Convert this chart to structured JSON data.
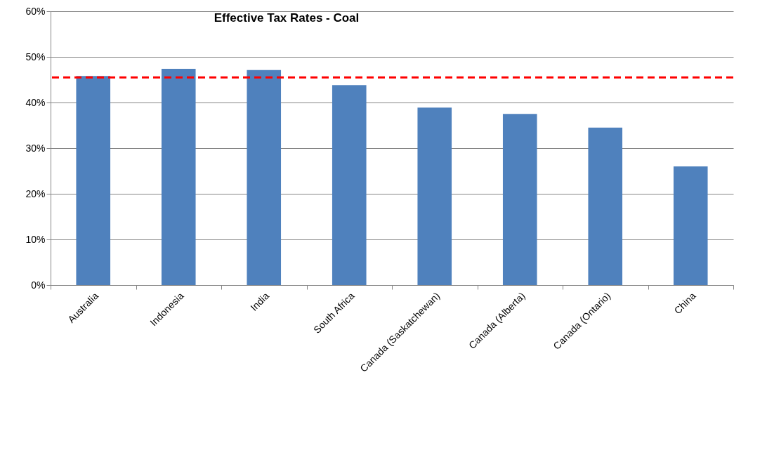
{
  "chart_data": {
    "type": "bar",
    "title": "Effective Tax Rates - Coal",
    "categories": [
      "Australia",
      "Indonesia",
      "India",
      "South Africa",
      "Canada (Saskatchewan)",
      "Canada (Alberta)",
      "Canada (Ontario)",
      "China"
    ],
    "values": [
      45.8,
      47.4,
      47.1,
      43.8,
      38.9,
      37.5,
      34.5,
      26.0
    ],
    "color": "#4f81bd",
    "ylim": [
      0,
      60
    ],
    "yticks": [
      {
        "value": 0,
        "label": "0%"
      },
      {
        "value": 10,
        "label": "10%"
      },
      {
        "value": 20,
        "label": "20%"
      },
      {
        "value": 30,
        "label": "30%"
      },
      {
        "value": 40,
        "label": "40%"
      },
      {
        "value": 50,
        "label": "50%"
      },
      {
        "value": 60,
        "label": "60%"
      }
    ],
    "grid": "y",
    "ref_lines": [
      {
        "axis": "y",
        "value": 45.5,
        "color": "#ff0000",
        "line_style": "dashed"
      }
    ]
  }
}
